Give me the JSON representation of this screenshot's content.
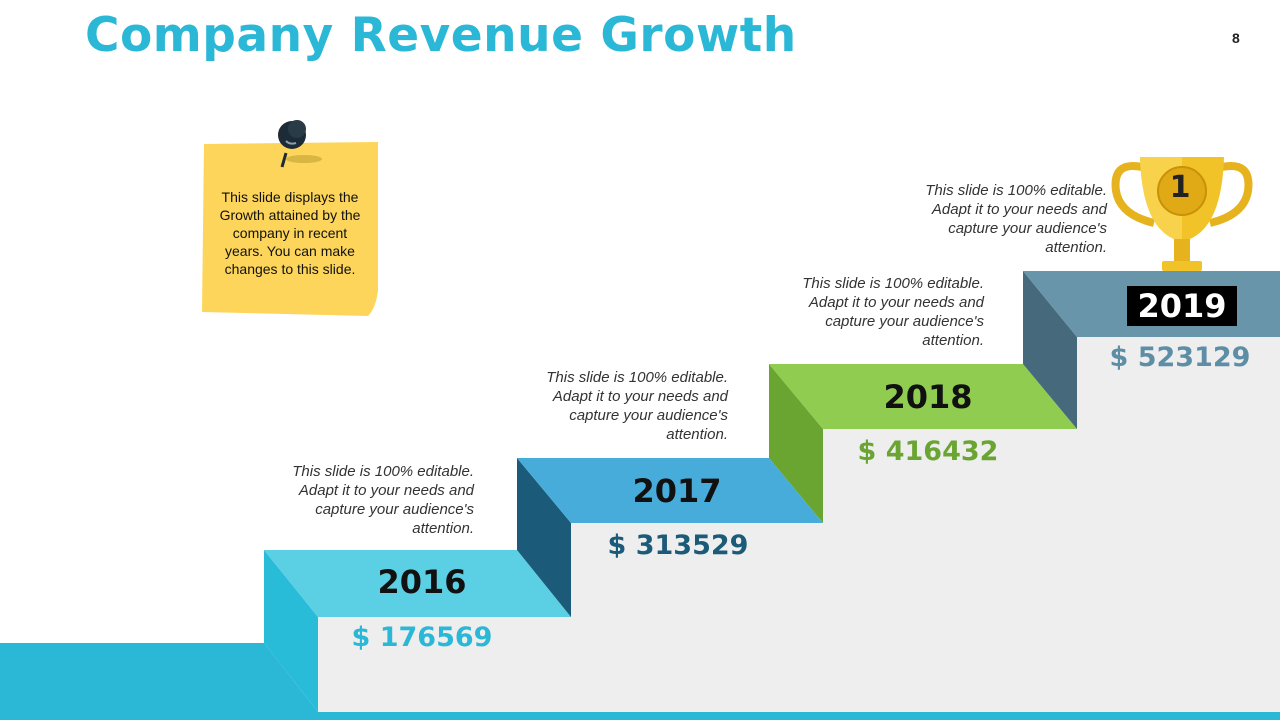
{
  "slide": {
    "title": "Company Revenue Growth",
    "page_number": "8"
  },
  "sticky_note": {
    "text": "This slide displays the Growth attained by the company in recent years. You can make changes to this slide."
  },
  "steps": [
    {
      "year": "2016",
      "amount": "$ 176569",
      "description": "This slide is 100% editable. Adapt it to your needs and capture your audience's attention.",
      "color": "#2bb7d6"
    },
    {
      "year": "2017",
      "amount": "$ 313529",
      "description": "This slide is 100% editable. Adapt it to your needs and capture your audience's attention.",
      "color": "#1b5a78"
    },
    {
      "year": "2018",
      "amount": "$ 416432",
      "description": "This slide is 100% editable. Adapt it to your needs and capture your audience's attention.",
      "color": "#6aa532"
    },
    {
      "year": "2019",
      "amount": "$ 523129",
      "description": "This slide is 100% editable. Adapt it to your needs and capture your audience's attention.",
      "color": "#5d8ea6"
    }
  ],
  "trophy": {
    "rank": "1"
  },
  "icons": [
    "push-pin-icon",
    "trophy-icon"
  ]
}
